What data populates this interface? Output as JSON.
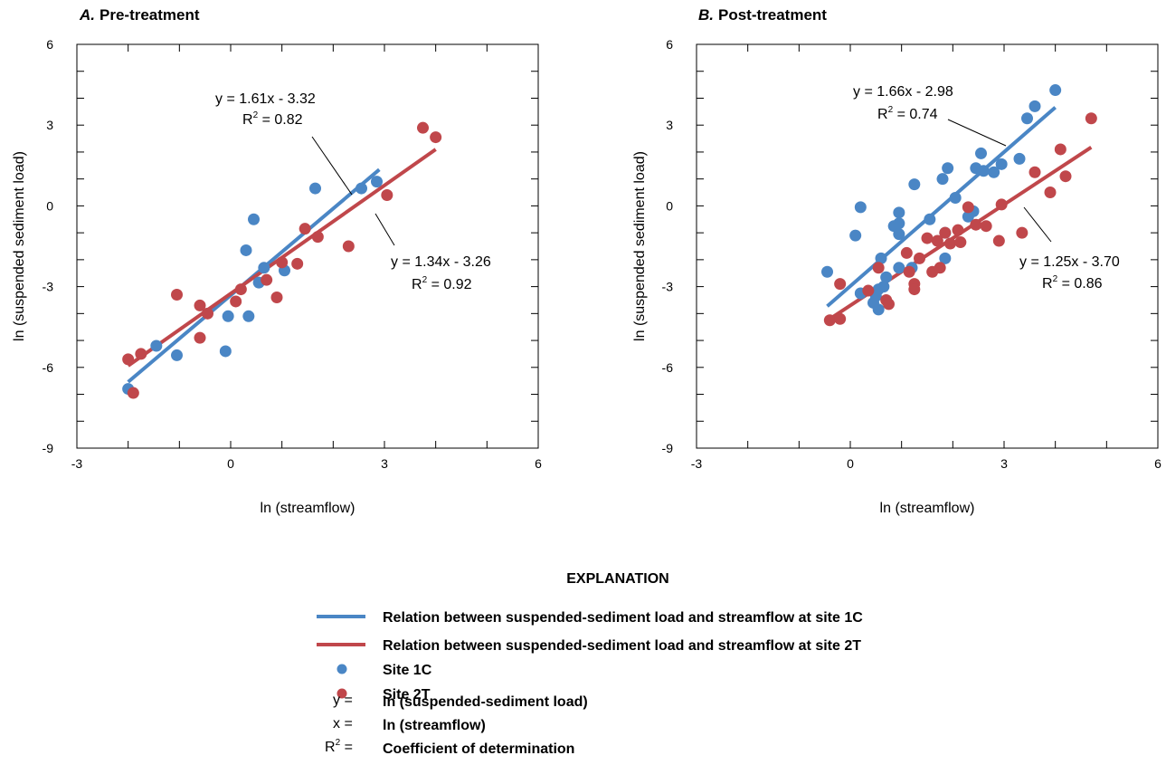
{
  "explanation": {
    "heading": "EXPLANATION",
    "items": [
      {
        "kind": "line",
        "color": "#4a86c5",
        "label": "Relation between suspended-sediment load and streamflow at site 1C"
      },
      {
        "kind": "line",
        "color": "#c0474b",
        "label": "Relation between suspended-sediment load and streamflow at site 2T"
      },
      {
        "kind": "dot",
        "color": "#4a86c5",
        "label": "Site 1C"
      },
      {
        "kind": "dot",
        "color": "#c0474b",
        "label": "Site 2T"
      },
      {
        "kind": "sym",
        "symbol": "y =",
        "label": "ln (suspended-sediment load)"
      },
      {
        "kind": "sym",
        "symbol": "x =",
        "label": "ln (streamflow)"
      },
      {
        "kind": "sym",
        "symbol": "R",
        "sup": "2",
        "tail": " =",
        "label": "Coefficient of determination"
      }
    ]
  },
  "chart_data": [
    {
      "type": "scatter",
      "title_letter": "A.",
      "title": "Pre-treatment",
      "xlabel": "ln (streamflow)",
      "ylabel": "ln (suspended sediment load)",
      "xlim": [
        -3,
        6
      ],
      "ylim": [
        -9,
        6
      ],
      "xticks": [
        -3,
        0,
        3,
        6
      ],
      "yticks": [
        -9,
        -6,
        -3,
        0,
        3,
        6
      ],
      "series": [
        {
          "name": "Site 1C",
          "color": "#4a86c5",
          "points": [
            [
              -2.0,
              -6.8
            ],
            [
              -1.45,
              -5.2
            ],
            [
              -1.05,
              -5.55
            ],
            [
              -0.1,
              -5.4
            ],
            [
              -0.05,
              -4.1
            ],
            [
              0.3,
              -1.65
            ],
            [
              0.35,
              -4.1
            ],
            [
              0.45,
              -0.5
            ],
            [
              0.55,
              -2.85
            ],
            [
              0.65,
              -2.3
            ],
            [
              1.05,
              -2.4
            ],
            [
              1.65,
              0.65
            ],
            [
              2.55,
              0.65
            ],
            [
              2.85,
              0.9
            ]
          ],
          "fit": {
            "slope": 1.61,
            "intercept": -3.32,
            "x_range": [
              -2.0,
              2.9
            ],
            "equation": "y = 1.61x - 3.32",
            "r2_label": "R",
            "r2_sup": "2",
            "r2_value": " = 0.82"
          }
        },
        {
          "name": "Site 2T",
          "color": "#c0474b",
          "points": [
            [
              -2.0,
              -5.7
            ],
            [
              -1.9,
              -6.95
            ],
            [
              -1.75,
              -5.5
            ],
            [
              -1.05,
              -3.3
            ],
            [
              -0.6,
              -3.7
            ],
            [
              -0.6,
              -4.9
            ],
            [
              -0.45,
              -4.0
            ],
            [
              0.1,
              -3.55
            ],
            [
              0.2,
              -3.1
            ],
            [
              0.7,
              -2.75
            ],
            [
              0.9,
              -3.4
            ],
            [
              1.0,
              -2.1
            ],
            [
              1.3,
              -2.15
            ],
            [
              1.45,
              -0.85
            ],
            [
              1.7,
              -1.15
            ],
            [
              2.3,
              -1.5
            ],
            [
              3.05,
              0.4
            ],
            [
              3.75,
              2.9
            ],
            [
              4.0,
              2.55
            ]
          ],
          "fit": {
            "slope": 1.34,
            "intercept": -3.26,
            "x_range": [
              -2.0,
              4.0
            ],
            "equation": "y = 1.34x - 3.26",
            "r2_label": "R",
            "r2_sup": "2",
            "r2_value": " = 0.92"
          }
        }
      ]
    },
    {
      "type": "scatter",
      "title_letter": "B.",
      "title": "Post-treatment",
      "xlabel": "ln (streamflow)",
      "ylabel": "ln (suspended sediment load)",
      "xlim": [
        -3,
        6
      ],
      "ylim": [
        -9,
        6
      ],
      "xticks": [
        -3,
        0,
        3,
        6
      ],
      "yticks": [
        -9,
        -6,
        -3,
        0,
        3,
        6
      ],
      "series": [
        {
          "name": "Site 1C",
          "color": "#4a86c5",
          "points": [
            [
              -0.45,
              -2.45
            ],
            [
              0.1,
              -1.1
            ],
            [
              0.2,
              -0.05
            ],
            [
              0.2,
              -3.25
            ],
            [
              0.45,
              -3.6
            ],
            [
              0.5,
              -3.35
            ],
            [
              0.55,
              -3.1
            ],
            [
              0.55,
              -3.85
            ],
            [
              0.6,
              -1.95
            ],
            [
              0.7,
              -2.65
            ],
            [
              0.65,
              -3.0
            ],
            [
              0.85,
              -0.75
            ],
            [
              0.95,
              -0.25
            ],
            [
              0.95,
              -0.65
            ],
            [
              0.95,
              -1.05
            ],
            [
              0.95,
              -2.3
            ],
            [
              1.2,
              -2.3
            ],
            [
              1.25,
              0.8
            ],
            [
              1.55,
              -0.5
            ],
            [
              1.8,
              1.0
            ],
            [
              1.85,
              -1.95
            ],
            [
              1.85,
              -1.0
            ],
            [
              1.9,
              1.4
            ],
            [
              2.05,
              0.3
            ],
            [
              2.3,
              -0.4
            ],
            [
              2.4,
              -0.2
            ],
            [
              2.45,
              1.4
            ],
            [
              2.55,
              1.95
            ],
            [
              2.6,
              1.3
            ],
            [
              2.8,
              1.25
            ],
            [
              2.95,
              1.55
            ],
            [
              3.3,
              1.75
            ],
            [
              3.45,
              3.25
            ],
            [
              3.6,
              3.7
            ],
            [
              4.0,
              4.3
            ]
          ],
          "fit": {
            "slope": 1.66,
            "intercept": -2.98,
            "x_range": [
              -0.45,
              4.0
            ],
            "equation": "y = 1.66x - 2.98",
            "r2_label": "R",
            "r2_sup": "2",
            "r2_value": " = 0.74"
          }
        },
        {
          "name": "Site 2T",
          "color": "#c0474b",
          "points": [
            [
              -0.4,
              -4.25
            ],
            [
              -0.2,
              -4.2
            ],
            [
              -0.2,
              -2.9
            ],
            [
              0.35,
              -3.15
            ],
            [
              0.55,
              -2.3
            ],
            [
              0.7,
              -3.5
            ],
            [
              0.75,
              -3.65
            ],
            [
              1.1,
              -1.75
            ],
            [
              1.15,
              -2.45
            ],
            [
              1.25,
              -2.9
            ],
            [
              1.25,
              -3.1
            ],
            [
              1.35,
              -1.95
            ],
            [
              1.5,
              -1.2
            ],
            [
              1.6,
              -2.45
            ],
            [
              1.7,
              -1.3
            ],
            [
              1.75,
              -2.3
            ],
            [
              1.85,
              -1.0
            ],
            [
              1.95,
              -1.4
            ],
            [
              2.1,
              -0.9
            ],
            [
              2.15,
              -1.35
            ],
            [
              2.3,
              -0.05
            ],
            [
              2.45,
              -0.7
            ],
            [
              2.65,
              -0.75
            ],
            [
              2.9,
              -1.3
            ],
            [
              2.95,
              0.05
            ],
            [
              3.35,
              -1.0
            ],
            [
              3.6,
              1.25
            ],
            [
              3.9,
              0.5
            ],
            [
              4.1,
              2.1
            ],
            [
              4.2,
              1.1
            ],
            [
              4.7,
              3.25
            ]
          ],
          "fit": {
            "slope": 1.25,
            "intercept": -3.7,
            "x_range": [
              -0.4,
              4.7
            ],
            "equation": "y = 1.25x - 3.70",
            "r2_label": "R",
            "r2_sup": "2",
            "r2_value": " = 0.86"
          }
        }
      ]
    }
  ]
}
